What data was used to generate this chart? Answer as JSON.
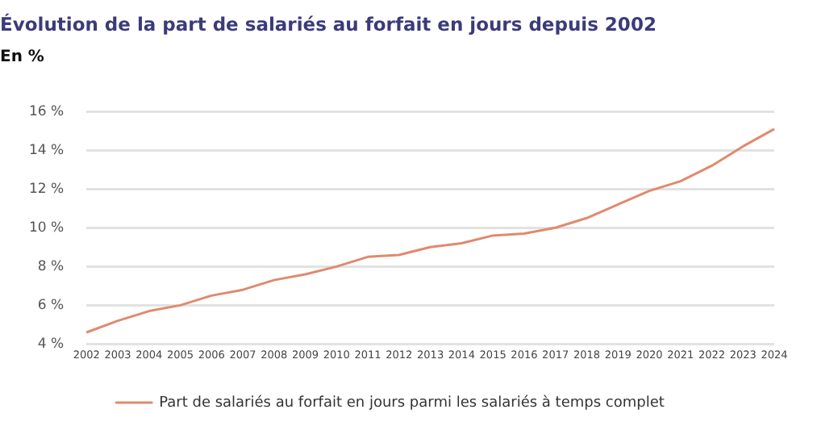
{
  "chart_data": {
    "type": "line",
    "title": "Évolution de la part de salariés au forfait en jours depuis 2002",
    "ylabel": "En %",
    "categories": [
      "2002",
      "2003",
      "2004",
      "2005",
      "2006",
      "2007",
      "2008",
      "2009",
      "2010",
      "2011",
      "2012",
      "2013",
      "2014",
      "2015",
      "2016",
      "2017",
      "2018",
      "2019",
      "2020",
      "2021",
      "2022",
      "2023",
      "2024"
    ],
    "series": [
      {
        "name": "Part de salariés au forfait en jours parmi les salariés à temps complet",
        "color": "#e08a6e",
        "values": [
          4.6,
          5.2,
          5.7,
          6.0,
          6.5,
          6.8,
          7.3,
          7.6,
          8.0,
          8.5,
          8.6,
          9.0,
          9.2,
          9.6,
          9.7,
          10.0,
          10.5,
          11.2,
          11.9,
          12.4,
          13.2,
          14.2,
          15.1
        ]
      }
    ],
    "ylim": [
      4,
      16
    ],
    "yticks": [
      {
        "value": 4,
        "label": "4 %"
      },
      {
        "value": 6,
        "label": "6 %"
      },
      {
        "value": 8,
        "label": "8 %"
      },
      {
        "value": 10,
        "label": "10 %"
      },
      {
        "value": 12,
        "label": "12 %"
      },
      {
        "value": 14,
        "label": "14 %"
      },
      {
        "value": 16,
        "label": "16 %"
      }
    ],
    "grid": "y",
    "legend": "bottom",
    "marker": "none",
    "line_style": "solid"
  }
}
